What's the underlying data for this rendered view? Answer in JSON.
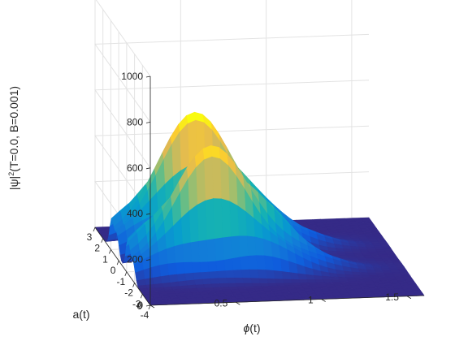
{
  "chart_data": {
    "type": "surface",
    "ylabel_prefix": "|ψ|",
    "ylabel_sup": "2",
    "ylabel_suffix": "(T=0.0, B=0.001)",
    "xlabel_phi": "ϕ",
    "xlabel_suffix": "(t)",
    "depthlabel": "a(t)",
    "phi_ticks": [
      "-4",
      "-3",
      "-2",
      "-1",
      "0",
      "1",
      "2",
      "3"
    ],
    "a_ticks": [
      "0",
      "0.5",
      "1",
      "1.5"
    ],
    "z_ticks": [
      "0",
      "200",
      "400",
      "600",
      "800",
      "1000"
    ],
    "phi_range": [
      -4,
      3
    ],
    "a_range": [
      0,
      1.6
    ],
    "z_range": [
      0,
      1000
    ],
    "grid": true,
    "peaks": [
      {
        "phi": -1.4,
        "a": 0.5,
        "height": 600
      },
      {
        "phi": 0.6,
        "a": 0.5,
        "height": 630
      }
    ],
    "colormap": "parula"
  }
}
